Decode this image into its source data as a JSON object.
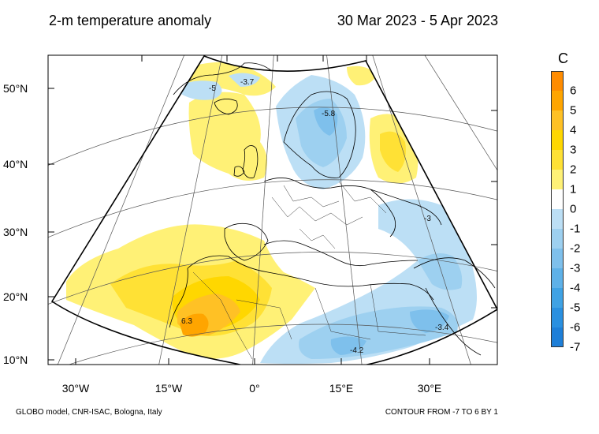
{
  "title": "2-m temperature anomaly",
  "date_range": "30 Mar 2023 - 5 Apr 2023",
  "footer_left": "GLOBO model, CNR-ISAC, Bologna, Italy",
  "footer_right": "CONTOUR FROM -7 TO 6 BY 1",
  "lat_labels": [
    "50°N",
    "40°N",
    "30°N",
    "20°N",
    "10°N"
  ],
  "lon_labels": [
    "30°W",
    "15°W",
    "0°",
    "15°E",
    "30°E"
  ],
  "colorbar": {
    "unit": "C",
    "levels": [
      "6",
      "5",
      "4",
      "3",
      "2",
      "1",
      "0",
      "-1",
      "-2",
      "-3",
      "-4",
      "-5",
      "-6",
      "-7"
    ],
    "colors": [
      "#ff8c00",
      "#ffa500",
      "#ffc125",
      "#ffd700",
      "#ffe135",
      "#fff176",
      "#ffffff",
      "#bcdff5",
      "#9dd0f0",
      "#7ec0ec",
      "#5eb1e8",
      "#3fa2e4",
      "#2a90e0",
      "#1e7fd8"
    ]
  },
  "contour_labels": [
    "-3.7",
    "-5",
    "-5.8",
    "-3",
    "6.3",
    "-3.4",
    "-4.2"
  ]
}
